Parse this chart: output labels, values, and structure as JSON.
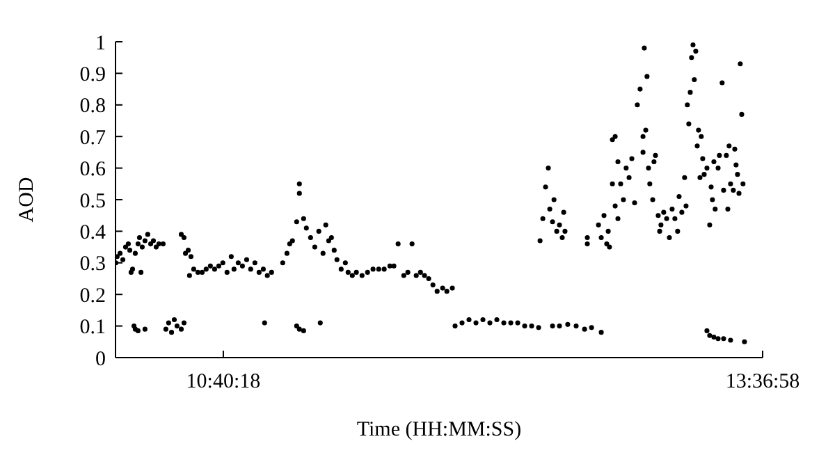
{
  "chart_data": {
    "type": "scatter",
    "xlabel": "Time (HH:MM:SS)",
    "ylabel": "AOD",
    "xlim": [
      10.083,
      13.616111
    ],
    "xticks": [
      {
        "value": 10.671667,
        "label": "10:40:18"
      },
      {
        "value": 13.616111,
        "label": "13:36:58"
      }
    ],
    "ylim": [
      0,
      1
    ],
    "yticks": [
      0,
      0.1,
      0.2,
      0.3,
      0.4,
      0.5,
      0.6,
      0.7,
      0.8,
      0.9,
      1
    ],
    "grid": false,
    "legend": false,
    "marker": "circle",
    "series": [
      {
        "color": "#000000",
        "x": [
          10.085,
          10.092,
          10.108,
          10.123,
          10.138,
          10.153,
          10.161,
          10.168,
          10.176,
          10.184,
          10.191,
          10.191,
          10.206,
          10.206,
          10.214,
          10.222,
          10.229,
          10.244,
          10.244,
          10.259,
          10.275,
          10.29,
          10.305,
          10.32,
          10.343,
          10.358,
          10.373,
          10.389,
          10.404,
          10.419,
          10.442,
          10.442,
          10.457,
          10.457,
          10.465,
          10.48,
          10.487,
          10.495,
          10.51,
          10.533,
          10.556,
          10.578,
          10.601,
          10.624,
          10.647,
          10.669,
          10.692,
          10.715,
          10.73,
          10.753,
          10.776,
          10.799,
          10.821,
          10.844,
          10.867,
          10.89,
          10.897,
          10.912,
          10.935,
          10.996,
          11.019,
          11.034,
          11.049,
          11.072,
          11.072,
          11.087,
          11.087,
          11.087,
          11.11,
          11.11,
          11.125,
          11.148,
          11.171,
          11.193,
          11.201,
          11.216,
          11.231,
          11.247,
          11.262,
          11.277,
          11.292,
          11.315,
          11.338,
          11.353,
          11.376,
          11.398,
          11.429,
          11.459,
          11.489,
          11.52,
          11.55,
          11.581,
          11.603,
          11.626,
          11.657,
          11.679,
          11.702,
          11.725,
          11.748,
          11.77,
          11.793,
          11.816,
          11.839,
          11.869,
          11.892,
          11.922,
          11.937,
          11.975,
          12.013,
          12.051,
          12.089,
          12.127,
          12.165,
          12.203,
          12.241,
          12.279,
          12.317,
          12.355,
          12.393,
          12.401,
          12.416,
          12.431,
          12.446,
          12.454,
          12.469,
          12.469,
          12.477,
          12.492,
          12.507,
          12.507,
          12.522,
          12.53,
          12.537,
          12.552,
          12.598,
          12.644,
          12.659,
          12.659,
          12.682,
          12.72,
          12.735,
          12.735,
          12.75,
          12.765,
          12.773,
          12.78,
          12.796,
          12.796,
          12.811,
          12.811,
          12.826,
          12.826,
          12.841,
          12.856,
          12.871,
          12.887,
          12.902,
          12.917,
          12.932,
          12.947,
          12.963,
          12.963,
          12.97,
          12.978,
          12.985,
          12.993,
          13.0,
          13.016,
          13.023,
          13.031,
          13.046,
          13.054,
          13.061,
          13.076,
          13.092,
          13.107,
          13.122,
          13.137,
          13.152,
          13.16,
          13.175,
          13.19,
          13.198,
          13.205,
          13.213,
          13.221,
          13.228,
          13.236,
          13.243,
          13.251,
          13.259,
          13.266,
          13.274,
          13.281,
          13.289,
          13.297,
          13.312,
          13.312,
          13.327,
          13.327,
          13.335,
          13.342,
          13.35,
          13.35,
          13.357,
          13.373,
          13.373,
          13.38,
          13.395,
          13.403,
          13.403,
          13.418,
          13.426,
          13.433,
          13.441,
          13.441,
          13.456,
          13.464,
          13.471,
          13.479,
          13.487,
          13.494,
          13.502,
          13.509,
          13.517
        ],
        "values": [
          0.3,
          0.32,
          0.33,
          0.31,
          0.35,
          0.36,
          0.34,
          0.27,
          0.28,
          0.1,
          0.09,
          0.33,
          0.085,
          0.36,
          0.38,
          0.27,
          0.35,
          0.09,
          0.37,
          0.39,
          0.36,
          0.37,
          0.35,
          0.36,
          0.36,
          0.09,
          0.11,
          0.08,
          0.12,
          0.1,
          0.09,
          0.39,
          0.11,
          0.38,
          0.33,
          0.34,
          0.26,
          0.32,
          0.28,
          0.27,
          0.27,
          0.28,
          0.29,
          0.28,
          0.29,
          0.3,
          0.27,
          0.32,
          0.28,
          0.3,
          0.29,
          0.31,
          0.28,
          0.3,
          0.27,
          0.28,
          0.11,
          0.26,
          0.27,
          0.3,
          0.33,
          0.36,
          0.37,
          0.43,
          0.1,
          0.55,
          0.52,
          0.09,
          0.44,
          0.085,
          0.41,
          0.38,
          0.35,
          0.4,
          0.11,
          0.33,
          0.42,
          0.37,
          0.38,
          0.34,
          0.31,
          0.28,
          0.3,
          0.27,
          0.26,
          0.27,
          0.26,
          0.27,
          0.28,
          0.28,
          0.28,
          0.29,
          0.29,
          0.36,
          0.26,
          0.27,
          0.36,
          0.26,
          0.27,
          0.26,
          0.25,
          0.23,
          0.21,
          0.22,
          0.21,
          0.22,
          0.1,
          0.11,
          0.12,
          0.11,
          0.12,
          0.11,
          0.12,
          0.11,
          0.11,
          0.11,
          0.1,
          0.1,
          0.095,
          0.37,
          0.44,
          0.54,
          0.6,
          0.47,
          0.43,
          0.1,
          0.5,
          0.4,
          0.42,
          0.1,
          0.38,
          0.46,
          0.4,
          0.105,
          0.1,
          0.09,
          0.38,
          0.36,
          0.095,
          0.42,
          0.38,
          0.08,
          0.45,
          0.36,
          0.4,
          0.35,
          0.55,
          0.69,
          0.48,
          0.7,
          0.62,
          0.44,
          0.55,
          0.5,
          0.6,
          0.57,
          0.63,
          0.49,
          0.8,
          0.85,
          0.7,
          0.65,
          0.98,
          0.72,
          0.89,
          0.6,
          0.55,
          0.5,
          0.62,
          0.64,
          0.45,
          0.4,
          0.42,
          0.46,
          0.44,
          0.38,
          0.47,
          0.44,
          0.4,
          0.51,
          0.46,
          0.57,
          0.48,
          0.8,
          0.74,
          0.84,
          0.95,
          0.99,
          0.88,
          0.97,
          0.67,
          0.72,
          0.57,
          0.7,
          0.63,
          0.58,
          0.6,
          0.085,
          0.42,
          0.07,
          0.54,
          0.5,
          0.62,
          0.065,
          0.47,
          0.6,
          0.06,
          0.64,
          0.87,
          0.53,
          0.06,
          0.64,
          0.47,
          0.67,
          0.55,
          0.055,
          0.53,
          0.66,
          0.61,
          0.58,
          0.52,
          0.93,
          0.77,
          0.55,
          0.05
        ]
      }
    ]
  }
}
